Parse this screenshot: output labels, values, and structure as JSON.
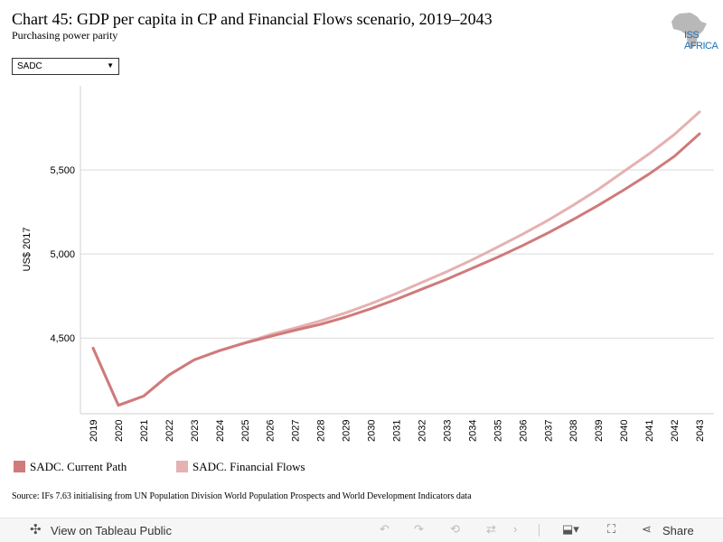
{
  "header": {
    "title": "Chart 45: GDP per capita in CP and Financial Flows scenario, 2019–2043",
    "subtitle": "Purchasing power parity",
    "logo_text": "ISS AFRICA"
  },
  "filter": {
    "selected": "SADC"
  },
  "legend": {
    "items": [
      {
        "label": "SADC. Current Path",
        "color": "#d07a7a"
      },
      {
        "label": "SADC. Financial Flows",
        "color": "#e6b1b1"
      }
    ]
  },
  "source": "Source: IFs 7.63 initialising from UN Population Division World Population Prospects and World Development Indicators data",
  "toolbar": {
    "view_label": "View on Tableau Public",
    "share_label": "Share"
  },
  "chart_data": {
    "type": "line",
    "ylabel": "US$ 2017",
    "yticks": [
      4500,
      5000,
      5500
    ],
    "ytick_labels": [
      "4,500",
      "5,000",
      "5,500"
    ],
    "ylim": [
      4050,
      6000
    ],
    "grid": true,
    "categories": [
      "2019",
      "2020",
      "2021",
      "2022",
      "2023",
      "2024",
      "2025",
      "2026",
      "2027",
      "2028",
      "2029",
      "2030",
      "2031",
      "2032",
      "2033",
      "2034",
      "2035",
      "2036",
      "2037",
      "2038",
      "2039",
      "2040",
      "2041",
      "2042",
      "2043"
    ],
    "series": [
      {
        "name": "SADC. Current Path",
        "color": "#d07a7a",
        "values": [
          4440,
          4100,
          4155,
          4280,
          4370,
          4425,
          4470,
          4510,
          4547,
          4582,
          4625,
          4675,
          4730,
          4790,
          4850,
          4915,
          4980,
          5050,
          5125,
          5205,
          5290,
          5380,
          5475,
          5580,
          5715
        ]
      },
      {
        "name": "SADC. Financial Flows",
        "color": "#e6b1b1",
        "values": [
          4440,
          4100,
          4155,
          4280,
          4370,
          4425,
          4472,
          4520,
          4560,
          4602,
          4650,
          4705,
          4765,
          4830,
          4895,
          4965,
          5040,
          5118,
          5200,
          5290,
          5385,
          5490,
          5595,
          5710,
          5845
        ]
      }
    ]
  }
}
